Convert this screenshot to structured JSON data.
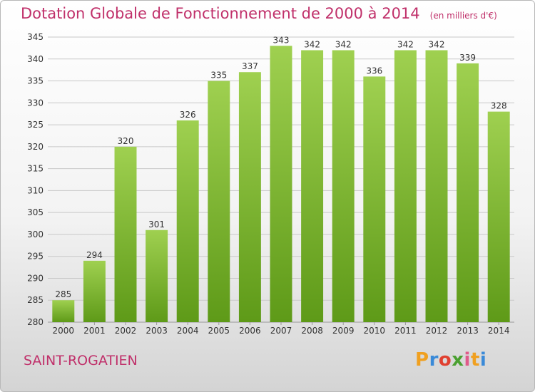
{
  "header": {
    "title": "Dotation Globale de Fonctionnement de 2000 à 2014",
    "subtitle": "(en milliers d'€)"
  },
  "footer": {
    "commune": "SAINT-ROGATIEN",
    "logo_letters": [
      "P",
      "r",
      "o",
      "x",
      "i",
      "t",
      "i"
    ],
    "logo_colors": [
      "#f0a020",
      "#3a8ad8",
      "#e04030",
      "#4aa030",
      "#e05a8a",
      "#f0a020",
      "#3a8ad8"
    ]
  },
  "colors": {
    "bar_top": "#9fd050",
    "bar_bottom": "#5e9a18",
    "grid": "#c8c8c8",
    "axis_text": "#333333",
    "title": "#c0306a"
  },
  "chart_data": {
    "type": "bar",
    "title": "Dotation Globale de Fonctionnement de 2000 à 2014",
    "subtitle": "(en milliers d'€)",
    "xlabel": "",
    "ylabel": "",
    "categories": [
      "2000",
      "2001",
      "2002",
      "2003",
      "2004",
      "2005",
      "2006",
      "2007",
      "2008",
      "2009",
      "2010",
      "2011",
      "2012",
      "2013",
      "2014"
    ],
    "values": [
      285,
      294,
      320,
      301,
      326,
      335,
      337,
      343,
      342,
      342,
      336,
      342,
      342,
      339,
      328
    ],
    "ylim": [
      280,
      345
    ],
    "yticks": [
      280,
      285,
      290,
      295,
      300,
      305,
      310,
      315,
      320,
      325,
      330,
      335,
      340,
      345
    ],
    "grid": true,
    "data_labels": true,
    "legend": "none"
  }
}
